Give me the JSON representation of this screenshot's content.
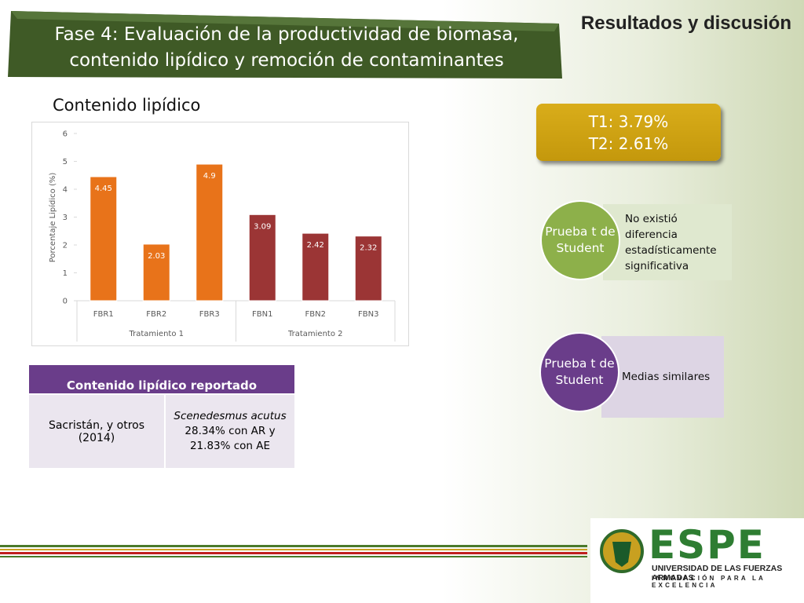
{
  "header": {
    "title": "Fase 4: Evaluación de la productividad de biomasa, contenido lipídico y remoción de contaminantes",
    "section": "Resultados y discusión"
  },
  "subtitle": "Contenido lipídico",
  "chart_data": {
    "type": "bar",
    "ylabel": "Porcentaje Lipídico (%)",
    "categories": [
      "FBR1",
      "FBR2",
      "FBR3",
      "FBN1",
      "FBN2",
      "FBN3"
    ],
    "values": [
      4.45,
      2.03,
      4.9,
      3.09,
      2.42,
      2.32
    ],
    "colors": [
      "#e8731a",
      "#e8731a",
      "#e8731a",
      "#9b3535",
      "#9b3535",
      "#9b3535"
    ],
    "groups": [
      "Tratamiento 1",
      "Tratamiento 2"
    ],
    "ylim": [
      0,
      6
    ],
    "yticks": [
      0,
      1,
      2,
      3,
      4,
      5,
      6
    ]
  },
  "summary": [
    "T1: 3.79%",
    "T2: 2.61%"
  ],
  "tests": [
    {
      "label": "Prueba t de Student",
      "text": "No existió diferencia estadísticamente significativa"
    },
    {
      "label": "Prueba t de Student",
      "text": "Medias similares"
    }
  ],
  "table": {
    "header": "Contenido lipídico  reportado",
    "rows": [
      [
        "Sacristán, y otros (2014)",
        {
          "species": "Scenedesmus acutus",
          "text": "28.34% con AR y 21.83% con AE"
        }
      ]
    ]
  },
  "logo": {
    "name": "ESPE",
    "university": "UNIVERSIDAD DE LAS FUERZAS ARMADAS",
    "motto": "INNOVACIÓN PARA LA EXCELENCIA"
  }
}
